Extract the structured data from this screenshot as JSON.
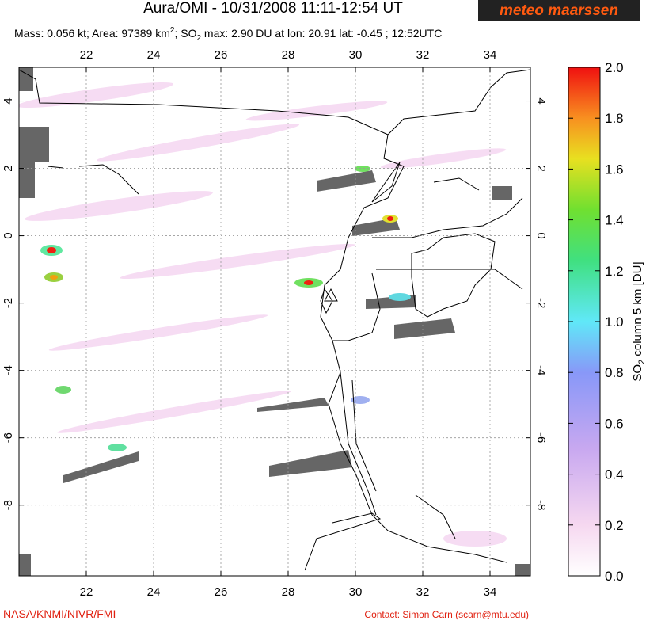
{
  "map": {
    "title": "Aura/OMI - 10/31/2008 11:11-12:54 UT",
    "logo": "meteo maarssen",
    "subtitle": {
      "a": "Mass: 0.056 kt; Area: 97389 km",
      "b": "2",
      "c": "; SO",
      "d": "2",
      "e": " max: 2.90 DU at lon: 20.91 lat: -0.45 ; 12:52UTC"
    },
    "lon_range": [
      20,
      35.2
    ],
    "lat_range": [
      -10.1,
      5
    ],
    "lon_ticks": [
      22,
      24,
      26,
      28,
      30,
      32,
      34
    ],
    "lat_ticks": [
      4,
      2,
      0,
      -2,
      -4,
      -6,
      -8
    ],
    "colorbar": {
      "label": {
        "a": "SO",
        "b": "2",
        "c": " column 5 km [DU]"
      },
      "range": [
        0,
        2
      ],
      "ticks": [
        {
          "value": 0,
          "label": "0.0"
        },
        {
          "value": 0.2,
          "label": "0.2"
        },
        {
          "value": 0.4,
          "label": "0.4"
        },
        {
          "value": 0.6,
          "label": "0.6"
        },
        {
          "value": 0.8,
          "label": "0.8"
        },
        {
          "value": 1,
          "label": "1.0"
        },
        {
          "value": 1.2,
          "label": "1.2"
        },
        {
          "value": 1.4,
          "label": "1.4"
        },
        {
          "value": 1.6,
          "label": "1.6"
        },
        {
          "value": 1.8,
          "label": "1.8"
        },
        {
          "value": 2,
          "label": "2.0"
        }
      ]
    },
    "footer_left": "NASA/KNMI/NIVR/FMI",
    "footer_right": "Contact: Simon Carn (scarn@mtu.edu)"
  }
}
